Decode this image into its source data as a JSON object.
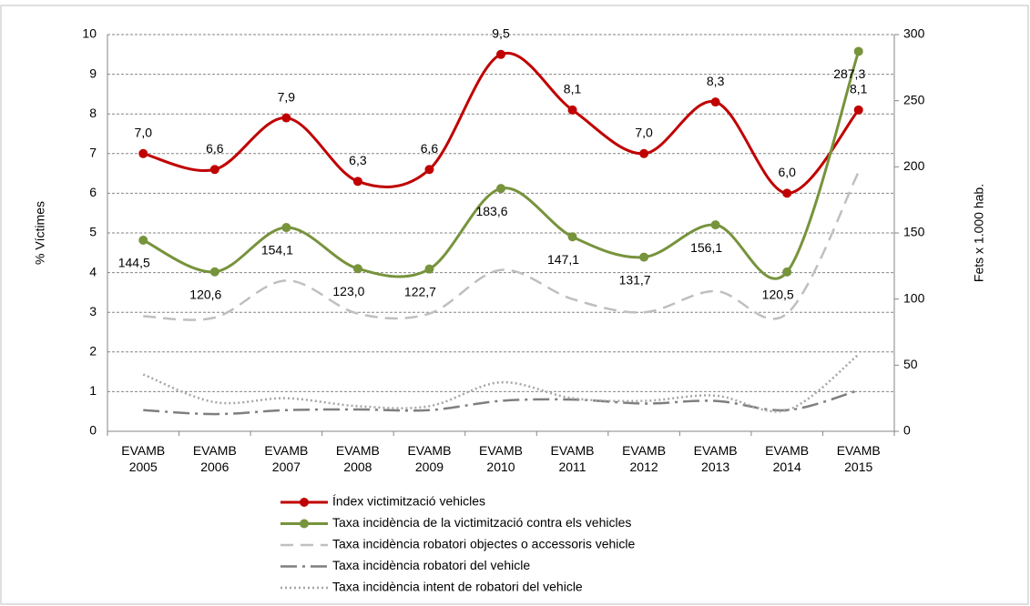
{
  "chart_data": {
    "type": "line",
    "categories": [
      "EVAMB 2005",
      "EVAMB 2006",
      "EVAMB 2007",
      "EVAMB 2008",
      "EVAMB 2009",
      "EVAMB 2010",
      "EVAMB 2011",
      "EVAMB 2012",
      "EVAMB 2013",
      "EVAMB 2014",
      "EVAMB 2015"
    ],
    "ylabel": "% Víctimes",
    "y2label": "Fets x 1.000 hab.",
    "ylim": [
      0,
      10
    ],
    "yticks": [
      0,
      1,
      2,
      3,
      4,
      5,
      6,
      7,
      8,
      9,
      10
    ],
    "y2lim": [
      0,
      300
    ],
    "y2ticks": [
      0,
      50,
      100,
      150,
      200,
      250,
      300
    ],
    "grid": true,
    "smooth": true,
    "legend": "bottom",
    "series": [
      {
        "name": "Índex victimització vehicles",
        "color": "#c00000",
        "line_style": "solid",
        "marker": "circle",
        "axis": "y",
        "values": [
          7.0,
          6.6,
          7.9,
          6.3,
          6.6,
          9.5,
          8.1,
          7.0,
          8.3,
          6.0,
          8.1
        ],
        "value_labels": [
          "7,0",
          "6,6",
          "7,9",
          "6,3",
          "6,6",
          "9,5",
          "8,1",
          "7,0",
          "8,3",
          "6,0",
          "8,1"
        ]
      },
      {
        "name": "Taxa incidència de la victimització contra els vehicles",
        "color": "#77933c",
        "line_style": "solid",
        "marker": "circle",
        "axis": "y2",
        "values": [
          144.5,
          120.6,
          154.1,
          123.0,
          122.7,
          183.6,
          147.1,
          131.7,
          156.1,
          120.5,
          287.3
        ],
        "value_labels": [
          "144,5",
          "120,6",
          "154,1",
          "123,0",
          "122,7",
          "183,6",
          "147,1",
          "131,7",
          "156,1",
          "120,5",
          "287,3"
        ]
      },
      {
        "name": "Taxa incidència robatori objectes o accessoris vehicle",
        "color": "#bfbfbf",
        "line_style": "dashed",
        "axis": "y2",
        "values": [
          87,
          86,
          114,
          89,
          89,
          122,
          100,
          90,
          106,
          89,
          196
        ]
      },
      {
        "name": "Taxa incidència robatori del vehicle",
        "color": "#7f7f7f",
        "line_style": "dashdot",
        "axis": "y2",
        "values": [
          16,
          13,
          16,
          16.5,
          16,
          23,
          24,
          21,
          23,
          16,
          31
        ]
      },
      {
        "name": "Taxa incidència intent de robatori del vehicle",
        "color": "#a6a6a6",
        "line_style": "dotted",
        "axis": "y2",
        "values": [
          43,
          22,
          25,
          19,
          19,
          37,
          25,
          23,
          27,
          16,
          58
        ]
      }
    ]
  }
}
